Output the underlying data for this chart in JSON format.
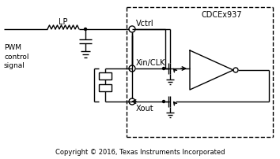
{
  "fig_width": 3.54,
  "fig_height": 2.03,
  "dpi": 100,
  "bg_color": "#ffffff",
  "line_color": "#000000",
  "text_color": "#000000",
  "copyright_text": "Copyright © 2016, Texas Instruments Incorporated",
  "cdce_label": "CDCEx937",
  "vctrl_label": "Vctrl",
  "xin_label": "Xin/CLK",
  "xout_label": "Xout",
  "lp_label": "LP",
  "pwm_label": "PWM\ncontrol\nsignal"
}
